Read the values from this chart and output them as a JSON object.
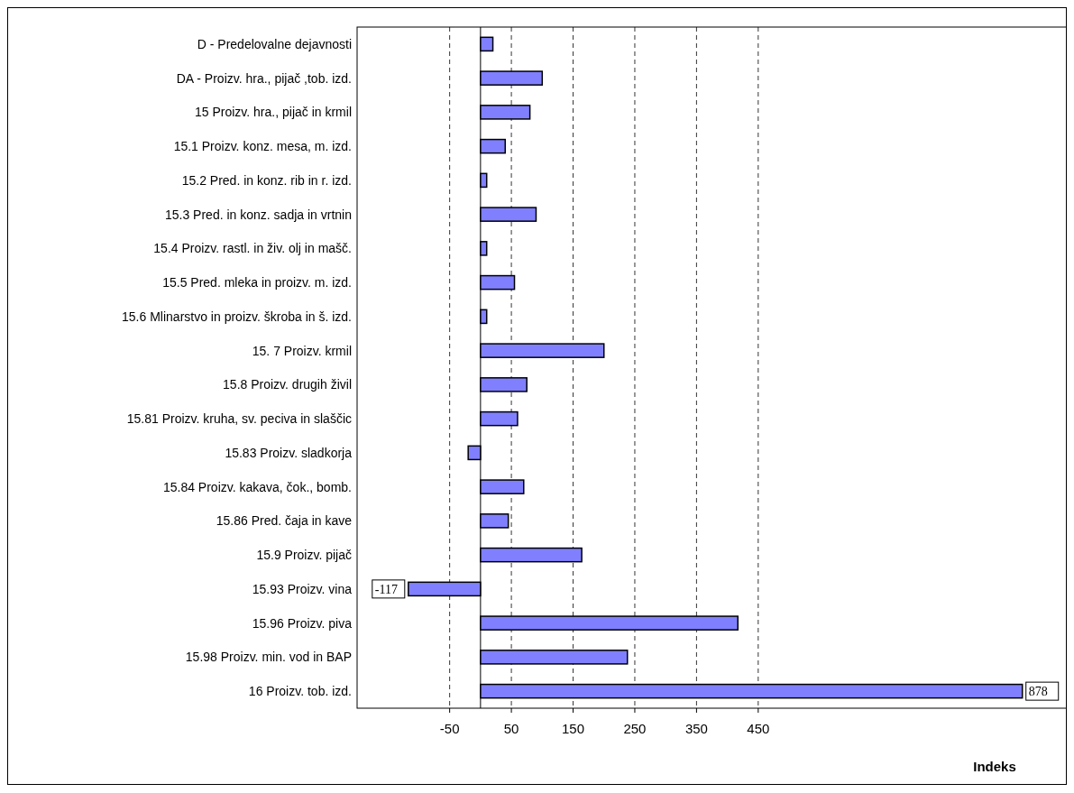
{
  "chart_data": {
    "type": "bar",
    "orientation": "horizontal",
    "xlabel": "Indeks",
    "categories": [
      "D - Predelovalne dejavnosti",
      "DA - Proizv. hra., pijač ,tob. izd.",
      "15 Proizv. hra., pijač in krmil",
      "15.1 Proizv. konz. mesa, m. izd.",
      "15.2 Pred. in konz. rib in r. izd.",
      "15.3 Pred. in konz. sadja in vrtnin",
      "15.4 Proizv. rastl. in živ. olj in mašč.",
      "15.5 Pred. mleka in proizv. m. izd.",
      "15.6 Mlinarstvo in proizv. škroba in š. izd.",
      "15. 7 Proizv. krmil",
      "15.8 Proizv. drugih živil",
      "15.81 Proizv. kruha, sv. peciva in slaščic",
      "15.83 Proizv. sladkorja",
      "15.84 Proizv. kakava, čok., bomb.",
      "15.86 Pred. čaja in kave",
      "15.9 Proizv. pijač",
      "15.93 Proizv. vina",
      "15.96 Proizv. piva",
      "15.98 Proizv. min. vod in BAP",
      "16 Proizv. tob. izd."
    ],
    "values": [
      20,
      100,
      80,
      40,
      10,
      90,
      10,
      55,
      10,
      200,
      75,
      60,
      -20,
      70,
      45,
      164,
      -117,
      417,
      238,
      878
    ],
    "value_labels": [
      null,
      null,
      null,
      null,
      null,
      null,
      null,
      null,
      null,
      null,
      null,
      null,
      null,
      null,
      null,
      null,
      "-117",
      null,
      null,
      "878"
    ],
    "color": "#8080ff",
    "xlim": [
      -200,
      950
    ],
    "xticks": [
      -50,
      50,
      150,
      250,
      350,
      450
    ],
    "grid": "x",
    "line_style": "dashed"
  }
}
